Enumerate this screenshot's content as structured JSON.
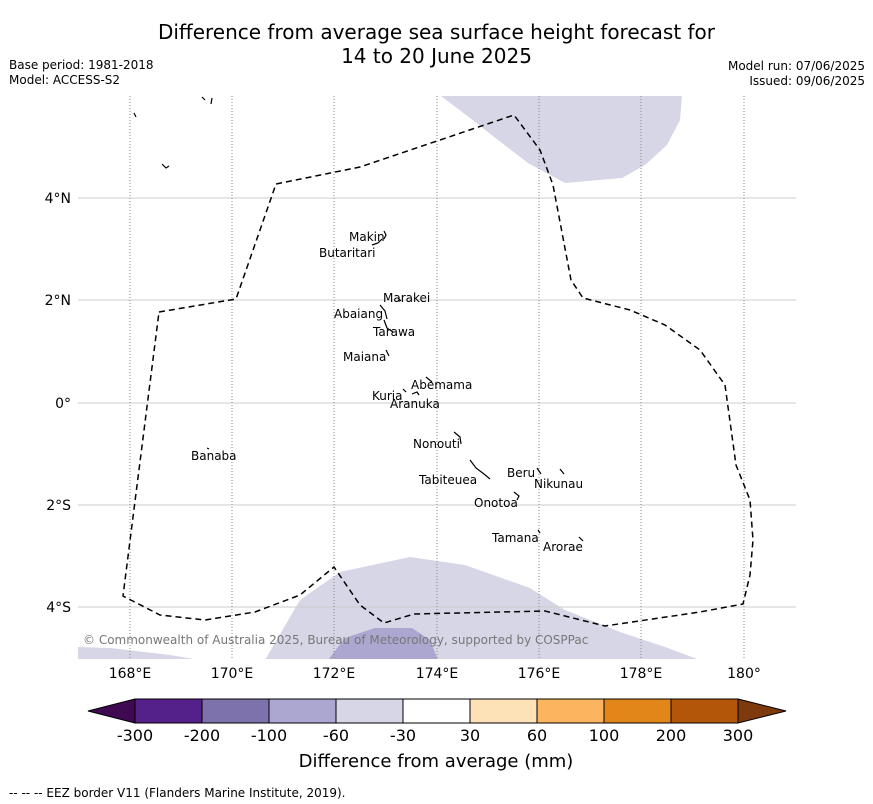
{
  "title": {
    "line1": "Difference from average sea surface height forecast for",
    "line2": "14 to 20 June 2025"
  },
  "meta": {
    "base_period": "Base period: 1981-2018",
    "model": "Model: ACCESS-S2",
    "model_run": "Model run: 07/06/2025",
    "issued": "Issued: 09/06/2025"
  },
  "map": {
    "lat_ticks": [
      "4°N",
      "2°N",
      "0°",
      "2°S",
      "4°S"
    ],
    "lon_ticks": [
      "168°E",
      "170°E",
      "172°E",
      "174°E",
      "176°E",
      "178°E",
      "180°"
    ],
    "attribution": "© Commonwealth of Australia 2025, Bureau of Meteorology, supported by COSPPac",
    "places": [
      "Makin",
      "Butaritari",
      "Marakei",
      "Abaiang",
      "Tarawa",
      "Maiana",
      "Abemama",
      "Kuria",
      "Aranuka",
      "Nonouti",
      "Banaba",
      "Beru",
      "Nikunau",
      "Tabiteuea",
      "Onotoa",
      "Tamana",
      "Arorae"
    ]
  },
  "colorbar": {
    "title": "Difference from average (mm)",
    "tick_labels": [
      "-300",
      "-200",
      "-100",
      "-60",
      "-30",
      "30",
      "60",
      "100",
      "200",
      "300"
    ],
    "colors": [
      "#3f0a52",
      "#54208a",
      "#7e72ad",
      "#aca7d0",
      "#d6d6e7",
      "#ffffff",
      "#fde1b7",
      "#fcb55e",
      "#e38619",
      "#b3560a",
      "#7e3a0c"
    ]
  },
  "footnote": "--  --  -- EEZ border V11 (Flanders Marine Institute, 2019)."
}
